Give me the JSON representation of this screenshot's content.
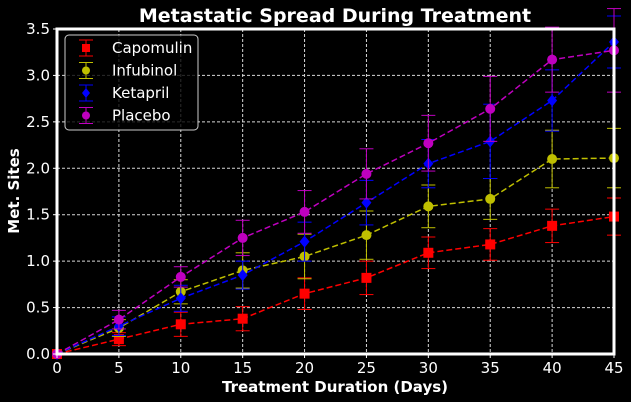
{
  "chart_data": {
    "type": "line",
    "title": "Metastatic Spread During Treatment",
    "xlabel": "Treatment Duration (Days)",
    "ylabel": "Met. Sites",
    "xlim": [
      0,
      45
    ],
    "ylim": [
      0,
      3.5
    ],
    "xticks": [
      "0",
      "5",
      "10",
      "15",
      "20",
      "25",
      "30",
      "35",
      "40",
      "45"
    ],
    "yticks": [
      "0.0",
      "0.5",
      "1.0",
      "1.5",
      "2.0",
      "2.5",
      "3.0",
      "3.5"
    ],
    "grid": true,
    "legend_position": "top-left",
    "background": "#000000",
    "x": [
      0,
      5,
      10,
      15,
      20,
      25,
      30,
      35,
      40,
      45
    ],
    "series": [
      {
        "name": "Capomulin",
        "color": "#ff0000",
        "marker": "square",
        "values": [
          0.0,
          0.16,
          0.32,
          0.38,
          0.65,
          0.82,
          1.09,
          1.18,
          1.38,
          1.48
        ],
        "errors": [
          0.0,
          0.07,
          0.13,
          0.13,
          0.17,
          0.18,
          0.17,
          0.17,
          0.18,
          0.2
        ]
      },
      {
        "name": "Infubinol",
        "color": "#bfbf00",
        "marker": "circle",
        "values": [
          0.0,
          0.28,
          0.67,
          0.9,
          1.05,
          1.28,
          1.59,
          1.67,
          2.1,
          2.11
        ],
        "errors": [
          0.0,
          0.09,
          0.13,
          0.19,
          0.24,
          0.26,
          0.23,
          0.22,
          0.31,
          0.32
        ]
      },
      {
        "name": "Ketapril",
        "color": "#0000ff",
        "marker": "diamond",
        "values": [
          0.0,
          0.3,
          0.6,
          0.85,
          1.21,
          1.63,
          2.05,
          2.29,
          2.73,
          3.36
        ],
        "errors": [
          0.0,
          0.1,
          0.14,
          0.15,
          0.21,
          0.24,
          0.26,
          0.4,
          0.33,
          0.28
        ]
      },
      {
        "name": "Placebo",
        "color": "#bf00bf",
        "marker": "circle",
        "values": [
          0.0,
          0.37,
          0.83,
          1.25,
          1.53,
          1.94,
          2.27,
          2.64,
          3.17,
          3.27
        ],
        "errors": [
          0.0,
          0.1,
          0.11,
          0.19,
          0.23,
          0.27,
          0.3,
          0.35,
          0.35,
          0.45
        ]
      }
    ]
  }
}
